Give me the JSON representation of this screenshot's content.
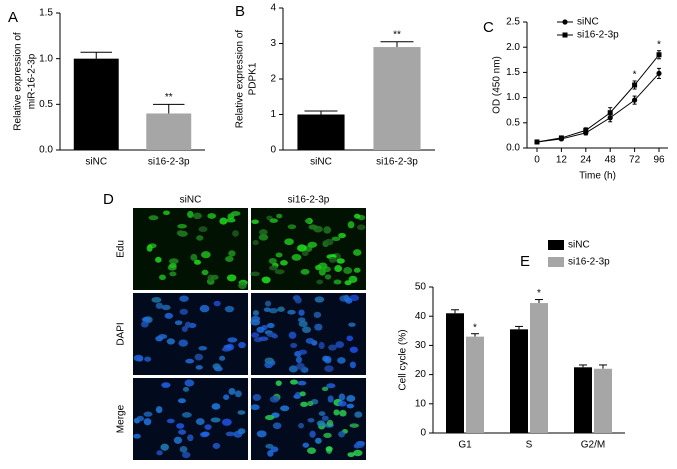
{
  "chart_data": [
    {
      "type": "bar",
      "panel": "A",
      "ylabel": [
        "Relative expression of",
        "miR-16-2-3p"
      ],
      "categories": [
        "siNC",
        "si16-2-3p"
      ],
      "values": [
        1.0,
        0.4
      ],
      "errors": [
        0.07,
        0.1
      ],
      "colors": [
        "#000000",
        "#a6a6a6"
      ],
      "ylim": [
        0,
        1.5
      ],
      "yticks": [
        {
          "value": 0,
          "label": "0.0"
        },
        {
          "value": 0.5,
          "label": "0.5"
        },
        {
          "value": 1,
          "label": "1.0"
        },
        {
          "value": 1.5,
          "label": "1.5"
        }
      ],
      "annotations": [
        {
          "text": "**",
          "x": "si16-2-3p"
        }
      ]
    },
    {
      "type": "bar",
      "panel": "B",
      "ylabel": [
        "Relative expression of",
        "PDPK1"
      ],
      "categories": [
        "siNC",
        "si16-2-3p"
      ],
      "values": [
        1.0,
        2.9
      ],
      "errors": [
        0.1,
        0.15
      ],
      "colors": [
        "#000000",
        "#a6a6a6"
      ],
      "ylim": [
        0,
        4
      ],
      "yticks": [
        0,
        1,
        2,
        3,
        4
      ],
      "annotations": [
        {
          "text": "**",
          "x": "si16-2-3p"
        }
      ]
    },
    {
      "type": "line",
      "panel": "C",
      "xlabel": "Time (h)",
      "ylabel": [
        "OD (450 nm)"
      ],
      "categories": [
        "0",
        "12",
        "24",
        "48",
        "72",
        "96"
      ],
      "series": [
        {
          "name": "siNC",
          "color": "#000000",
          "marker": "circle",
          "values": [
            0.12,
            0.18,
            0.3,
            0.6,
            0.95,
            1.48
          ],
          "errors": [
            0.02,
            0.02,
            0.04,
            0.08,
            0.08,
            0.1
          ]
        },
        {
          "name": "si16-2-3p",
          "color": "#000000",
          "marker": "square",
          "values": [
            0.12,
            0.2,
            0.35,
            0.7,
            1.25,
            1.85
          ],
          "errors": [
            0.02,
            0.02,
            0.05,
            0.1,
            0.08,
            0.08
          ]
        }
      ],
      "ylim": [
        0,
        2.5
      ],
      "yticks": [
        {
          "value": 0,
          "label": "0.0"
        },
        {
          "value": 0.5,
          "label": "0.5"
        },
        {
          "value": 1,
          "label": "1.0"
        },
        {
          "value": 1.5,
          "label": "1.5"
        },
        {
          "value": 2,
          "label": "2.0"
        },
        {
          "value": 2.5,
          "label": "2.5"
        }
      ],
      "legend": "upper-left",
      "annotations": [
        {
          "text": "*",
          "x": "72"
        },
        {
          "text": "*",
          "x": "96"
        }
      ]
    },
    {
      "type": "grouped-bar",
      "panel": "E",
      "ylabel": [
        "Cell cycle (%)"
      ],
      "categories": [
        "G1",
        "S",
        "G2/M"
      ],
      "series": [
        {
          "name": "siNC",
          "color": "#000000",
          "values": [
            41,
            35.5,
            22.5
          ],
          "errors": [
            1.2,
            1.0,
            0.8
          ]
        },
        {
          "name": "si16-2-3p",
          "color": "#a6a6a6",
          "values": [
            33,
            44.5,
            22
          ],
          "errors": [
            1.0,
            1.2,
            1.3
          ]
        }
      ],
      "ylim": [
        0,
        50
      ],
      "yticks": [
        0,
        10,
        20,
        30,
        40,
        50
      ],
      "legend": "top",
      "annotations": [
        {
          "text": "*",
          "x": "G1",
          "series": "si16-2-3p"
        },
        {
          "text": "*",
          "x": "S",
          "series": "si16-2-3p"
        }
      ]
    }
  ],
  "image_panel": {
    "panel": "D",
    "columns": [
      "siNC",
      "si16-2-3p"
    ],
    "rows": [
      "Edu",
      "DAPI",
      "Merge"
    ]
  }
}
